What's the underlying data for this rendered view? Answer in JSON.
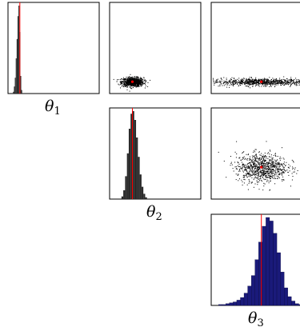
{
  "figure": {
    "type": "corner-plot",
    "colors": {
      "truth_line": "#ff0000",
      "hist_dark": "#2a2a2a",
      "hist_blue": "#1a1a7a",
      "scatter": "#000000"
    }
  },
  "chart_data": {
    "type": "corner",
    "parameters": [
      {
        "symbol": "θ",
        "subscript": "1"
      },
      {
        "symbol": "θ",
        "subscript": "2"
      },
      {
        "symbol": "θ",
        "subscript": "3"
      }
    ],
    "truth": [
      0.13,
      0.25,
      0.55
    ],
    "marginals": [
      {
        "param": "θ1",
        "type": "histogram",
        "x": [
          0.06,
          0.07,
          0.08,
          0.09,
          0.1,
          0.11,
          0.12,
          0.13,
          0.14,
          0.15
        ],
        "counts": [
          2,
          8,
          18,
          40,
          62,
          88,
          100,
          70,
          20,
          4
        ],
        "xlim": [
          0.0,
          1.0
        ]
      },
      {
        "param": "θ2",
        "type": "histogram",
        "x": [
          0.14,
          0.16,
          0.18,
          0.2,
          0.22,
          0.24,
          0.26,
          0.28,
          0.3,
          0.32,
          0.34,
          0.36,
          0.38,
          0.4
        ],
        "counts": [
          3,
          10,
          26,
          52,
          80,
          97,
          100,
          90,
          70,
          48,
          28,
          14,
          6,
          2
        ],
        "xlim": [
          0.0,
          1.0
        ]
      },
      {
        "param": "θ3",
        "type": "histogram",
        "x": [
          0.1,
          0.14,
          0.18,
          0.22,
          0.26,
          0.3,
          0.34,
          0.38,
          0.42,
          0.46,
          0.5,
          0.54,
          0.58,
          0.62,
          0.66,
          0.7,
          0.74,
          0.78,
          0.82,
          0.86,
          0.9,
          0.94,
          0.98
        ],
        "counts": [
          1,
          1,
          2,
          3,
          4,
          6,
          9,
          14,
          22,
          34,
          52,
          72,
          90,
          100,
          96,
          82,
          60,
          38,
          20,
          10,
          5,
          2,
          1
        ],
        "xlim": [
          0.0,
          1.0
        ]
      }
    ],
    "pairs": [
      {
        "x": "θ1",
        "y": "θ2",
        "type": "scatter",
        "center": [
          0.25,
          0.13
        ],
        "spread": [
          0.06,
          0.025
        ]
      },
      {
        "x": "θ1",
        "y": "θ3",
        "type": "scatter",
        "center": [
          0.55,
          0.13
        ],
        "spread": [
          0.28,
          0.02
        ]
      },
      {
        "x": "θ2",
        "y": "θ3",
        "type": "scatter",
        "center": [
          0.55,
          0.35
        ],
        "spread": [
          0.14,
          0.08
        ]
      }
    ]
  }
}
